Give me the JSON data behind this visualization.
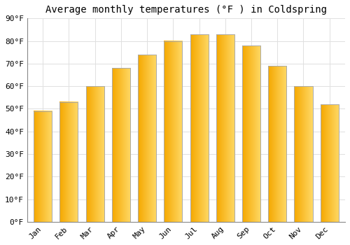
{
  "title": "Average monthly temperatures (°F ) in Coldspring",
  "months": [
    "Jan",
    "Feb",
    "Mar",
    "Apr",
    "May",
    "Jun",
    "Jul",
    "Aug",
    "Sep",
    "Oct",
    "Nov",
    "Dec"
  ],
  "values": [
    49,
    53,
    60,
    68,
    74,
    80,
    83,
    83,
    78,
    69,
    60,
    52
  ],
  "bar_color_left": "#F5A800",
  "bar_color_right": "#FFD966",
  "bar_edge_color": "#AAAAAA",
  "ylim": [
    0,
    90
  ],
  "yticks": [
    0,
    10,
    20,
    30,
    40,
    50,
    60,
    70,
    80,
    90
  ],
  "ytick_labels": [
    "0°F",
    "10°F",
    "20°F",
    "30°F",
    "40°F",
    "50°F",
    "60°F",
    "70°F",
    "80°F",
    "90°F"
  ],
  "background_color": "#FFFFFF",
  "grid_color": "#E0E0E0",
  "title_fontsize": 10,
  "tick_fontsize": 8,
  "font_family": "monospace",
  "bar_width": 0.7,
  "figsize": [
    5.0,
    3.5
  ],
  "dpi": 100
}
